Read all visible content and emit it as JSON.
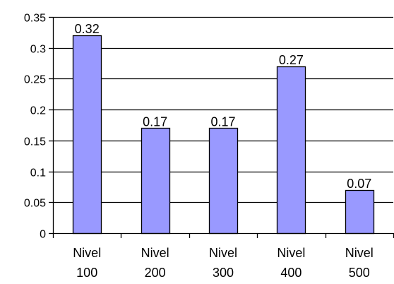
{
  "chart_data": {
    "type": "bar",
    "categories": [
      [
        "Nivel",
        "100"
      ],
      [
        "Nivel",
        "200"
      ],
      [
        "Nivel",
        "300"
      ],
      [
        "Nivel",
        "400"
      ],
      [
        "Nivel",
        "500"
      ]
    ],
    "values": [
      0.32,
      0.17,
      0.17,
      0.27,
      0.07
    ],
    "data_labels": [
      "0.32",
      "0.17",
      "0.17",
      "0.27",
      "0.07"
    ],
    "y_ticks": [
      "0",
      "0.05",
      "0.1",
      "0.15",
      "0.2",
      "0.25",
      "0.3",
      "0.35"
    ],
    "ylim": [
      0,
      0.35
    ],
    "y_step": 0.05,
    "grid": true,
    "legend": "none",
    "colors": {
      "bar_fill": "#9999ff",
      "bar_stroke": "#000000",
      "grid": "#000000",
      "axis": "#000000",
      "background": "#ffffff"
    }
  }
}
